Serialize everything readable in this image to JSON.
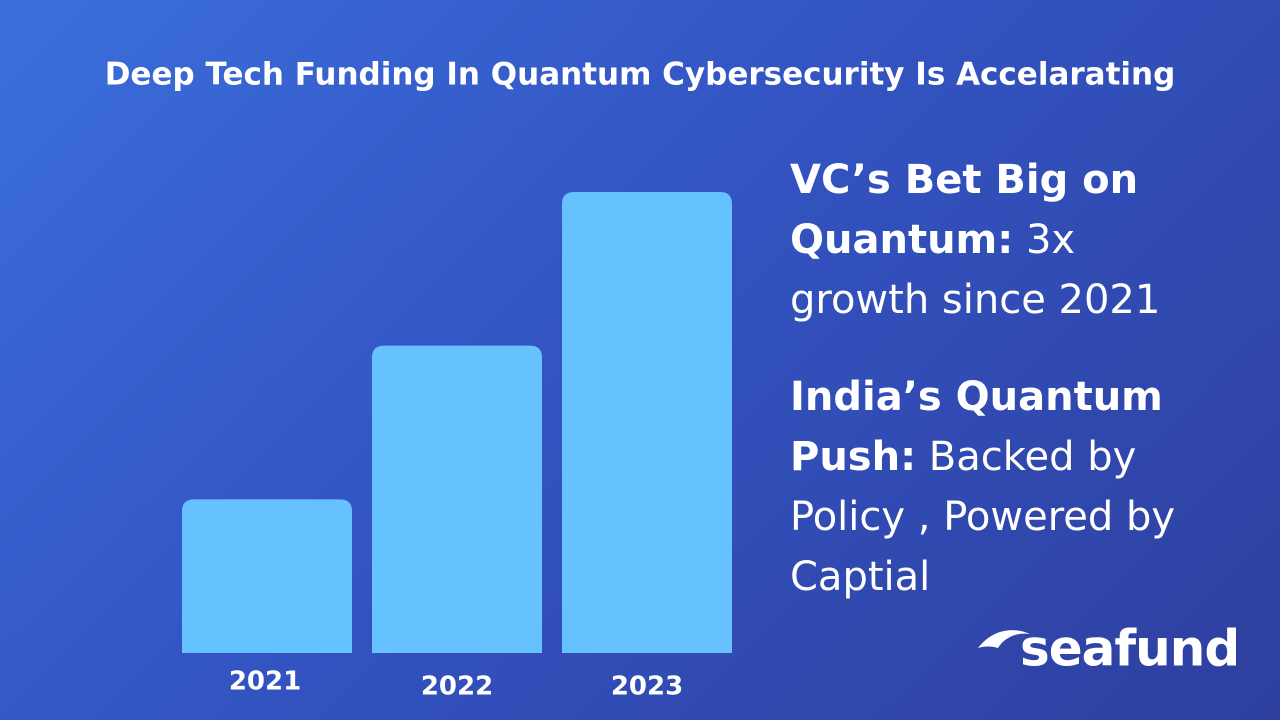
{
  "chart_data": {
    "type": "bar",
    "title": "Deep Tech Funding In Quantum Cybersecurity Is Accelarating",
    "categories": [
      "2021",
      "2022",
      "2023"
    ],
    "values": [
      1,
      2,
      3
    ],
    "color": "#66c2ff",
    "ylim": [
      0,
      3
    ]
  },
  "notes": [
    {
      "bold": "VC’s Bet Big on Quantum:",
      "text": "3x growth since 2021"
    },
    {
      "bold": "India’s Quantum Push:",
      "text": "Backed by Policy , Powered by Captial"
    }
  ],
  "logo": "seafund"
}
